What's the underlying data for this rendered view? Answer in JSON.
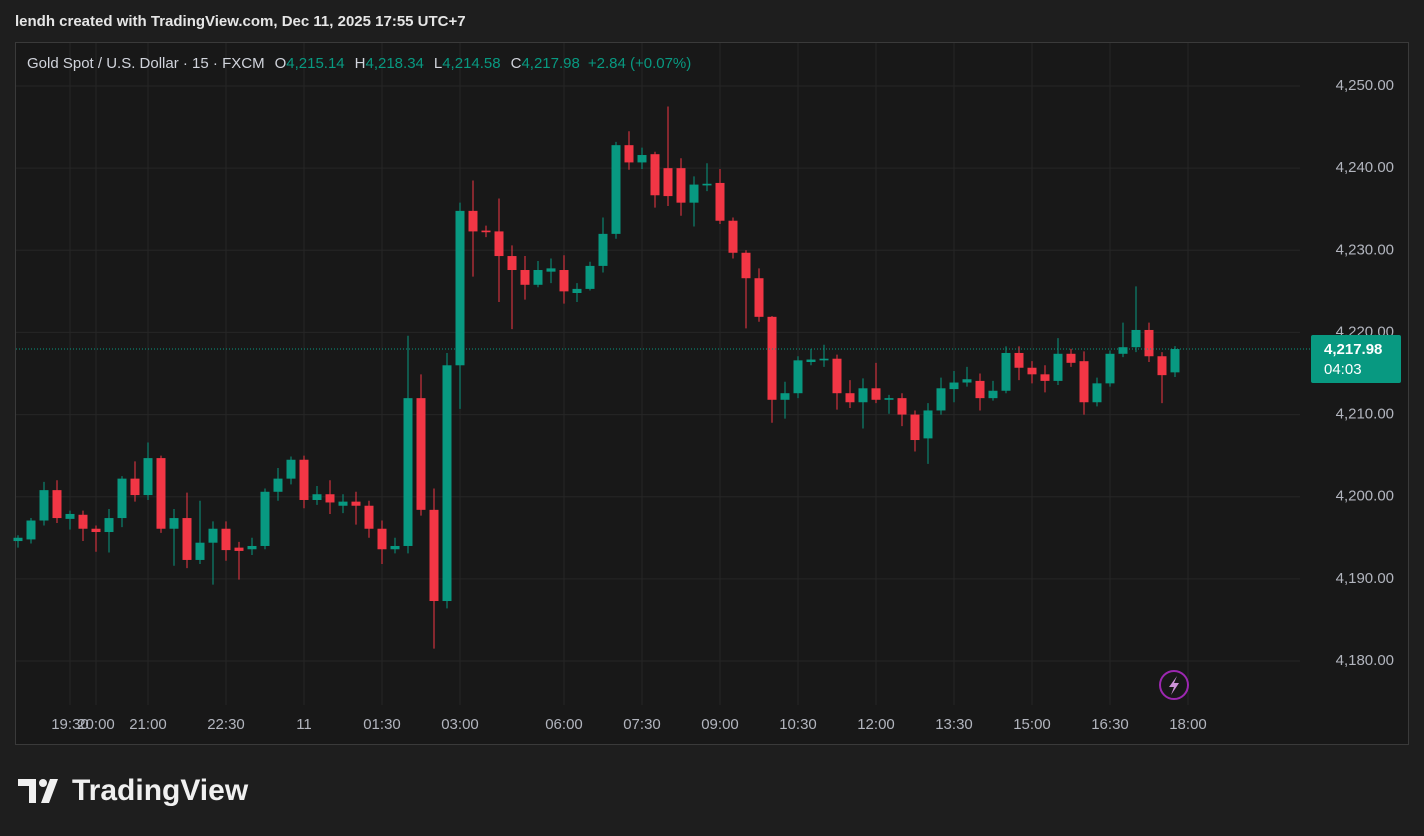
{
  "attribution": "lendh created with TradingView.com, Dec 11, 2025 17:55 UTC+7",
  "logo": "TradingView",
  "chart_data": {
    "type": "candlestick",
    "title": "Gold Spot / U.S. Dollar · 15 · FXCM",
    "ohlc_header": [
      {
        "key": "O",
        "label": "4,215.14"
      },
      {
        "key": "H",
        "label": "4,218.34"
      },
      {
        "key": "L",
        "label": "4,214.58"
      },
      {
        "key": "C",
        "label": "4,217.98"
      }
    ],
    "change_label": "+2.84 (+0.07%)",
    "x": [
      "18:30",
      "18:45",
      "19:00",
      "19:15",
      "19:30",
      "19:45",
      "20:00",
      "20:15",
      "20:30",
      "20:45",
      "21:00",
      "21:15",
      "21:30",
      "21:45",
      "22:00",
      "22:15",
      "22:30",
      "22:45",
      "23:00",
      "23:15",
      "23:30",
      "23:45",
      "00:00",
      "00:15",
      "00:30",
      "00:45",
      "01:00",
      "01:15",
      "01:30",
      "01:45",
      "02:00",
      "02:15",
      "02:30",
      "02:45",
      "03:00",
      "03:15",
      "03:30",
      "03:45",
      "04:00",
      "04:15",
      "04:30",
      "04:45",
      "06:00",
      "06:15",
      "06:30",
      "06:45",
      "07:00",
      "07:15",
      "07:30",
      "07:45",
      "08:00",
      "08:15",
      "08:30",
      "08:45",
      "09:00",
      "09:15",
      "09:30",
      "09:45",
      "10:00",
      "10:15",
      "10:30",
      "10:45",
      "11:00",
      "11:15",
      "11:30",
      "11:45",
      "12:00",
      "12:15",
      "12:30",
      "12:45",
      "13:00",
      "13:15",
      "13:30",
      "13:45",
      "14:00",
      "14:15",
      "14:30",
      "14:45",
      "15:00",
      "15:15",
      "15:30",
      "15:45",
      "16:00",
      "16:15",
      "16:30",
      "16:45",
      "17:00",
      "17:15",
      "17:30",
      "17:45"
    ],
    "open": [
      4194.6,
      4194.8,
      4197.1,
      4200.8,
      4197.3,
      4197.8,
      4196.1,
      4195.7,
      4197.4,
      4202.2,
      4200.2,
      4204.7,
      4196.1,
      4197.4,
      4192.3,
      4194.4,
      4196.1,
      4193.8,
      4193.6,
      4194.0,
      4200.6,
      4202.2,
      4204.5,
      4199.6,
      4200.3,
      4198.9,
      4199.4,
      4198.9,
      4196.1,
      4193.6,
      4194.0,
      4212.0,
      4198.4,
      4187.3,
      4216.0,
      4234.8,
      4232.4,
      4232.3,
      4229.3,
      4227.6,
      4225.8,
      4227.4,
      4227.6,
      4224.8,
      4225.3,
      4228.1,
      4232.0,
      4242.8,
      4240.7,
      4241.7,
      4240.0,
      4240.0,
      4235.8,
      4237.9,
      4238.2,
      4233.6,
      4229.7,
      4226.6,
      4221.9,
      4211.8,
      4212.6,
      4216.4,
      4216.6,
      4216.8,
      4212.6,
      4211.5,
      4213.2,
      4211.8,
      4212.0,
      4210.0,
      4207.1,
      4210.5,
      4213.1,
      4213.9,
      4214.1,
      4212.0,
      4212.9,
      4217.5,
      4215.7,
      4214.9,
      4214.1,
      4217.4,
      4216.5,
      4211.5,
      4213.8,
      4217.4,
      4218.2,
      4220.3,
      4217.1,
      4215.14
    ],
    "high": [
      4195.3,
      4197.4,
      4201.8,
      4202.0,
      4198.3,
      4198.3,
      4196.5,
      4198.5,
      4202.5,
      4204.3,
      4206.6,
      4205.0,
      4198.5,
      4200.5,
      4199.5,
      4197.0,
      4197.0,
      4194.5,
      4195.0,
      4201.0,
      4203.5,
      4204.9,
      4205.0,
      4201.3,
      4202.0,
      4200.3,
      4200.6,
      4199.5,
      4197.1,
      4195.0,
      4219.6,
      4214.9,
      4201.0,
      4217.5,
      4235.8,
      4238.5,
      4233.0,
      4236.3,
      4230.6,
      4229.3,
      4228.7,
      4229.0,
      4229.4,
      4226.0,
      4228.6,
      4234.0,
      4243.2,
      4244.5,
      4242.5,
      4242.0,
      4247.5,
      4241.2,
      4239.0,
      4240.6,
      4239.9,
      4234.0,
      4230.0,
      4227.8,
      4222.0,
      4214.0,
      4217.1,
      4218.0,
      4218.5,
      4217.3,
      4214.2,
      4214.4,
      4216.3,
      4212.4,
      4212.6,
      4210.5,
      4211.4,
      4214.5,
      4215.3,
      4215.8,
      4215.0,
      4214.1,
      4218.3,
      4218.3,
      4216.5,
      4216.0,
      4219.3,
      4218.0,
      4217.7,
      4214.5,
      4217.8,
      4221.2,
      4225.6,
      4221.2,
      4217.6,
      4218.34
    ],
    "low": [
      4193.8,
      4194.3,
      4196.5,
      4196.8,
      4196.0,
      4194.6,
      4193.3,
      4193.2,
      4196.3,
      4199.4,
      4199.6,
      4195.6,
      4191.6,
      4191.3,
      4191.8,
      4189.3,
      4192.2,
      4189.9,
      4192.9,
      4193.6,
      4199.5,
      4201.5,
      4198.6,
      4199.0,
      4197.9,
      4198.0,
      4196.6,
      4195.0,
      4191.8,
      4193.1,
      4193.1,
      4197.7,
      4181.5,
      4186.4,
      4210.7,
      4226.8,
      4231.6,
      4223.7,
      4220.4,
      4224.0,
      4225.5,
      4226.0,
      4223.5,
      4223.7,
      4225.1,
      4227.3,
      4231.4,
      4239.8,
      4239.9,
      4235.2,
      4235.4,
      4234.2,
      4232.9,
      4237.2,
      4233.2,
      4229.0,
      4220.5,
      4221.3,
      4209.0,
      4209.5,
      4212.0,
      4216.0,
      4215.8,
      4210.6,
      4210.8,
      4208.3,
      4211.4,
      4210.1,
      4208.6,
      4205.5,
      4204.0,
      4210.0,
      4211.5,
      4213.4,
      4210.5,
      4211.7,
      4212.6,
      4214.2,
      4213.8,
      4212.7,
      4213.6,
      4215.8,
      4210.0,
      4211.0,
      4213.4,
      4217.0,
      4217.6,
      4216.4,
      4211.4,
      4214.58
    ],
    "close": [
      4195.0,
      4197.1,
      4200.8,
      4197.4,
      4197.9,
      4196.1,
      4195.7,
      4197.4,
      4202.2,
      4200.2,
      4204.7,
      4196.1,
      4197.4,
      4192.3,
      4194.4,
      4196.1,
      4193.5,
      4193.4,
      4194.0,
      4200.6,
      4202.2,
      4204.5,
      4199.6,
      4200.3,
      4199.3,
      4199.4,
      4198.9,
      4196.1,
      4193.6,
      4194.0,
      4212.0,
      4198.4,
      4187.3,
      4216.0,
      4234.8,
      4232.3,
      4232.2,
      4229.3,
      4227.6,
      4225.8,
      4227.6,
      4227.8,
      4225.0,
      4225.3,
      4228.1,
      4232.0,
      4242.8,
      4240.7,
      4241.6,
      4236.7,
      4236.6,
      4235.8,
      4238.0,
      4238.1,
      4233.6,
      4229.7,
      4226.6,
      4221.9,
      4211.8,
      4212.6,
      4216.6,
      4216.7,
      4216.8,
      4212.6,
      4211.5,
      4213.2,
      4211.8,
      4212.0,
      4210.0,
      4206.9,
      4210.5,
      4213.2,
      4213.9,
      4214.3,
      4212.0,
      4212.9,
      4217.5,
      4215.7,
      4214.9,
      4214.1,
      4217.4,
      4216.3,
      4211.5,
      4213.8,
      4217.4,
      4218.2,
      4220.3,
      4217.1,
      4214.8,
      4217.98
    ],
    "up_color": "#089981",
    "down_color": "#f23645",
    "ylim": [
      4174.64,
      4255.36
    ],
    "yticks": [
      {
        "value": 4180,
        "label": "4,180.00"
      },
      {
        "value": 4190,
        "label": "4,190.00"
      },
      {
        "value": 4200,
        "label": "4,200.00"
      },
      {
        "value": 4210,
        "label": "4,210.00"
      },
      {
        "value": 4220,
        "label": "4,220.00"
      },
      {
        "value": 4230,
        "label": "4,230.00"
      },
      {
        "value": 4240,
        "label": "4,240.00"
      },
      {
        "value": 4250,
        "label": "4,250.00"
      }
    ],
    "xticks": [
      {
        "value": "19:30",
        "label": "19:30"
      },
      {
        "value": "21:00",
        "label": "21:00"
      },
      {
        "value": "22:30",
        "label": "22:30"
      },
      {
        "value": "00:00",
        "label": "11"
      },
      {
        "value": "01:30",
        "label": "01:30"
      },
      {
        "value": "03:00",
        "label": "03:00"
      },
      {
        "value": "06:00",
        "label": "06:00"
      },
      {
        "value": "07:30",
        "label": "07:30"
      },
      {
        "value": "09:00",
        "label": "09:00"
      },
      {
        "value": "10:30",
        "label": "10:30"
      },
      {
        "value": "12:00",
        "label": "12:00"
      },
      {
        "value": "13:30",
        "label": "13:30"
      },
      {
        "value": "15:00",
        "label": "15:00"
      },
      {
        "value": "16:30",
        "label": "16:30"
      },
      {
        "value": "18:00",
        "label": "18:00"
      },
      {
        "value": "20:00",
        "label": "20:00"
      }
    ],
    "last_price_label": "4,217.98",
    "countdown": "04:03",
    "grid": true
  }
}
